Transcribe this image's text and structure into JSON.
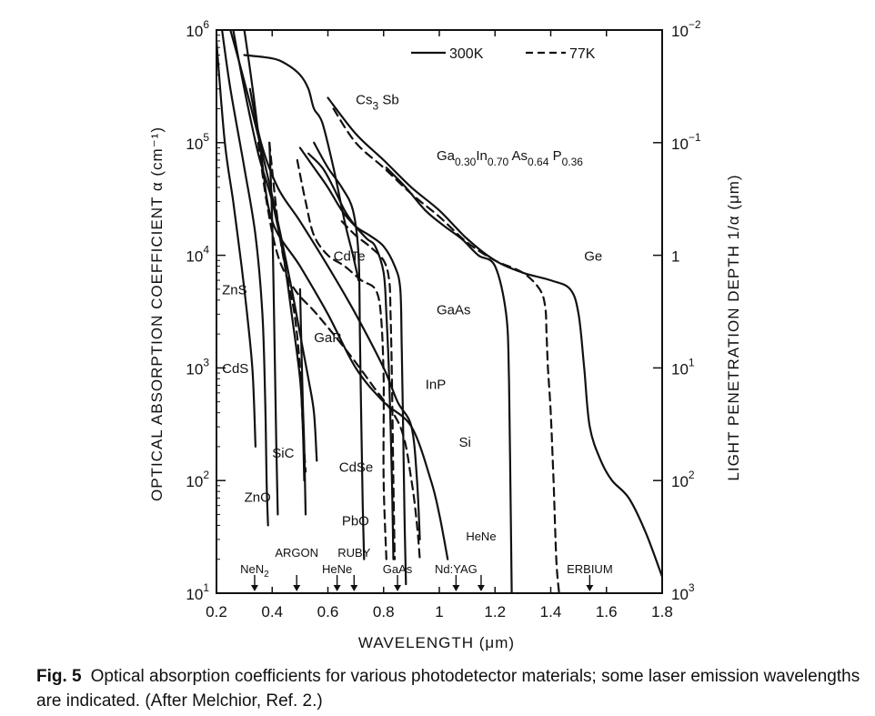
{
  "chart_data": {
    "type": "line",
    "title": "",
    "xlabel": "WAVELENGTH  (μm)",
    "ylabel": "OPTICAL  ABSORPTION  COEFFICIENT  α  (cm⁻¹)",
    "y2label": "LIGHT  PENETRATION  DEPTH  1/α  (μm)",
    "xlim": [
      0.2,
      1.8
    ],
    "ylim": [
      10,
      1000000
    ],
    "yscale": "log",
    "x_ticks": [
      "0.2",
      "0.4",
      "0.6",
      "0.8",
      "1",
      "1.2",
      "1.4",
      "1.6",
      "1.8"
    ],
    "x_tick_values": [
      0.2,
      0.4,
      0.6,
      0.8,
      1.0,
      1.2,
      1.4,
      1.6,
      1.8
    ],
    "y_ticks": [
      {
        "base": "10",
        "exp": "1",
        "value": 10
      },
      {
        "base": "10",
        "exp": "2",
        "value": 100
      },
      {
        "base": "10",
        "exp": "3",
        "value": 1000
      },
      {
        "base": "10",
        "exp": "4",
        "value": 10000
      },
      {
        "base": "10",
        "exp": "5",
        "value": 100000
      },
      {
        "base": "10",
        "exp": "6",
        "value": 1000000
      }
    ],
    "y2_ticks": [
      {
        "base": "10",
        "exp": "3",
        "value": 10
      },
      {
        "base": "10",
        "exp": "2",
        "value": 100
      },
      {
        "base": "10",
        "exp": "1",
        "value": 1000
      },
      {
        "base": "1",
        "exp": "",
        "value": 10000
      },
      {
        "base": "10",
        "exp": "−1",
        "value": 100000
      },
      {
        "base": "10",
        "exp": "−2",
        "value": 1000000
      }
    ],
    "legend": [
      {
        "label": "300K",
        "style": "solid"
      },
      {
        "label": "77K",
        "style": "dashed"
      }
    ],
    "series": [
      {
        "name": "ZnS",
        "temp": "300K",
        "points": [
          [
            0.2,
            800000
          ],
          [
            0.23,
            100000
          ],
          [
            0.26,
            30000
          ],
          [
            0.29,
            8000
          ],
          [
            0.31,
            3000
          ],
          [
            0.33,
            900
          ],
          [
            0.34,
            200
          ]
        ]
      },
      {
        "name": "ZnO",
        "temp": "300K",
        "points": [
          [
            0.22,
            1000000
          ],
          [
            0.25,
            300000
          ],
          [
            0.3,
            60000
          ],
          [
            0.34,
            15000
          ],
          [
            0.365,
            3000
          ],
          [
            0.375,
            500
          ],
          [
            0.38,
            100
          ],
          [
            0.385,
            40
          ]
        ]
      },
      {
        "name": "CdS",
        "temp": "300K",
        "points": [
          [
            0.26,
            1000000
          ],
          [
            0.3,
            300000
          ],
          [
            0.35,
            80000
          ],
          [
            0.4,
            30000
          ],
          [
            0.44,
            10000
          ],
          [
            0.47,
            3000
          ],
          [
            0.5,
            800
          ],
          [
            0.51,
            300
          ],
          [
            0.515,
            100
          ]
        ]
      },
      {
        "name": "SiC",
        "temp": "300K",
        "points": [
          [
            0.39,
            100000
          ],
          [
            0.4,
            20000
          ],
          [
            0.405,
            5000
          ],
          [
            0.41,
            1000
          ],
          [
            0.415,
            200
          ],
          [
            0.42,
            50
          ]
        ]
      },
      {
        "name": "GaP",
        "temp": "300K",
        "points": [
          [
            0.25,
            1000000
          ],
          [
            0.3,
            350000
          ],
          [
            0.36,
            90000
          ],
          [
            0.42,
            20000
          ],
          [
            0.47,
            5000
          ],
          [
            0.5,
            2000
          ],
          [
            0.53,
            800
          ],
          [
            0.55,
            400
          ],
          [
            0.56,
            150
          ]
        ]
      },
      {
        "name": "GaP",
        "temp": "77K",
        "points": [
          [
            0.39,
            100000
          ],
          [
            0.42,
            20000
          ],
          [
            0.45,
            7000
          ],
          [
            0.48,
            3000
          ],
          [
            0.5,
            1000
          ],
          [
            0.51,
            300
          ],
          [
            0.52,
            120
          ]
        ]
      },
      {
        "name": "PbO",
        "temp": "300K",
        "points": [
          [
            0.5,
            5000
          ],
          [
            0.505,
            1500
          ],
          [
            0.51,
            500
          ],
          [
            0.515,
            200
          ],
          [
            0.52,
            50
          ]
        ]
      },
      {
        "name": "Cs3 Sb",
        "temp": "300K",
        "points": [
          [
            0.3,
            600000
          ],
          [
            0.4,
            560000
          ],
          [
            0.45,
            500000
          ],
          [
            0.5,
            400000
          ],
          [
            0.53,
            300000
          ],
          [
            0.55,
            200000
          ],
          [
            0.58,
            150000
          ],
          [
            0.62,
            60000
          ],
          [
            0.66,
            20000
          ],
          [
            0.69,
            10000
          ],
          [
            0.71,
            6000
          ]
        ]
      },
      {
        "name": "CdTe",
        "temp": "300K",
        "points": [
          [
            0.53,
            80000
          ],
          [
            0.58,
            60000
          ],
          [
            0.62,
            40000
          ],
          [
            0.66,
            25000
          ],
          [
            0.7,
            18000
          ],
          [
            0.74,
            14000
          ],
          [
            0.77,
            12000
          ],
          [
            0.8,
            7000
          ],
          [
            0.81,
            3000
          ],
          [
            0.82,
            800
          ],
          [
            0.83,
            100
          ],
          [
            0.835,
            20
          ]
        ]
      },
      {
        "name": "CdTe",
        "temp": "77K",
        "points": [
          [
            0.49,
            70000
          ],
          [
            0.52,
            30000
          ],
          [
            0.55,
            15000
          ],
          [
            0.6,
            10000
          ],
          [
            0.66,
            8000
          ],
          [
            0.72,
            6000
          ],
          [
            0.77,
            5000
          ],
          [
            0.79,
            3000
          ],
          [
            0.8,
            800
          ],
          [
            0.8,
            100
          ],
          [
            0.81,
            20
          ]
        ]
      },
      {
        "name": "CdSe",
        "temp": "300K",
        "points": [
          [
            0.55,
            100000
          ],
          [
            0.6,
            60000
          ],
          [
            0.65,
            40000
          ],
          [
            0.69,
            25000
          ],
          [
            0.71,
            10000
          ],
          [
            0.715,
            2000
          ],
          [
            0.72,
            300
          ],
          [
            0.725,
            60
          ],
          [
            0.73,
            20
          ]
        ]
      },
      {
        "name": "GaAs",
        "temp": "300K",
        "points": [
          [
            0.5,
            90000
          ],
          [
            0.55,
            60000
          ],
          [
            0.6,
            40000
          ],
          [
            0.65,
            25000
          ],
          [
            0.7,
            18000
          ],
          [
            0.75,
            15000
          ],
          [
            0.8,
            12000
          ],
          [
            0.84,
            8000
          ],
          [
            0.86,
            5000
          ],
          [
            0.865,
            1500
          ],
          [
            0.87,
            300
          ],
          [
            0.875,
            50
          ],
          [
            0.88,
            12
          ]
        ]
      },
      {
        "name": "GaAs",
        "temp": "77K",
        "points": [
          [
            0.65,
            20000
          ],
          [
            0.7,
            15000
          ],
          [
            0.75,
            12000
          ],
          [
            0.8,
            9000
          ],
          [
            0.82,
            6000
          ],
          [
            0.825,
            3000
          ],
          [
            0.83,
            800
          ],
          [
            0.835,
            100
          ],
          [
            0.84,
            20
          ]
        ]
      },
      {
        "name": "InP",
        "temp": "300K",
        "points": [
          [
            0.32,
            300000
          ],
          [
            0.36,
            100000
          ],
          [
            0.42,
            40000
          ],
          [
            0.5,
            20000
          ],
          [
            0.6,
            8000
          ],
          [
            0.7,
            3000
          ],
          [
            0.8,
            1000
          ],
          [
            0.85,
            500
          ],
          [
            0.9,
            300
          ],
          [
            0.92,
            100
          ],
          [
            0.93,
            30
          ]
        ]
      },
      {
        "name": "Si",
        "temp": "300K",
        "points": [
          [
            0.3,
            1000000
          ],
          [
            0.33,
            300000
          ],
          [
            0.36,
            80000
          ],
          [
            0.4,
            20000
          ],
          [
            0.5,
            8000
          ],
          [
            0.6,
            3000
          ],
          [
            0.7,
            1000
          ],
          [
            0.8,
            500
          ],
          [
            0.9,
            300
          ],
          [
            0.97,
            100
          ],
          [
            1.0,
            50
          ],
          [
            1.03,
            20
          ]
        ]
      },
      {
        "name": "Si",
        "temp": "77K",
        "points": [
          [
            0.35,
            100000
          ],
          [
            0.38,
            30000
          ],
          [
            0.42,
            10000
          ],
          [
            0.48,
            5000
          ],
          [
            0.56,
            3000
          ],
          [
            0.66,
            1500
          ],
          [
            0.76,
            700
          ],
          [
            0.86,
            300
          ],
          [
            0.9,
            100
          ],
          [
            0.92,
            40
          ],
          [
            0.93,
            20
          ]
        ]
      },
      {
        "name": "Ga0.30In0.70As0.64P0.36",
        "temp": "300K",
        "points": [
          [
            0.81,
            60000
          ],
          [
            0.88,
            40000
          ],
          [
            0.95,
            25000
          ],
          [
            1.02,
            18000
          ],
          [
            1.08,
            14000
          ],
          [
            1.14,
            10000
          ],
          [
            1.2,
            8000
          ],
          [
            1.24,
            3000
          ],
          [
            1.25,
            800
          ],
          [
            1.255,
            100
          ],
          [
            1.26,
            10
          ]
        ]
      },
      {
        "name": "Ge",
        "temp": "300K",
        "points": [
          [
            0.6,
            250000
          ],
          [
            0.7,
            120000
          ],
          [
            0.8,
            70000
          ],
          [
            0.9,
            40000
          ],
          [
            1.0,
            25000
          ],
          [
            1.1,
            14000
          ],
          [
            1.2,
            9000
          ],
          [
            1.3,
            7000
          ],
          [
            1.4,
            6000
          ],
          [
            1.47,
            5000
          ],
          [
            1.5,
            3000
          ],
          [
            1.52,
            1000
          ],
          [
            1.54,
            300
          ],
          [
            1.58,
            150
          ],
          [
            1.62,
            100
          ],
          [
            1.68,
            70
          ],
          [
            1.74,
            35
          ],
          [
            1.8,
            14
          ]
        ]
      },
      {
        "name": "Ge",
        "temp": "77K",
        "points": [
          [
            0.62,
            200000
          ],
          [
            0.7,
            100000
          ],
          [
            0.8,
            60000
          ],
          [
            0.9,
            35000
          ],
          [
            1.0,
            22000
          ],
          [
            1.1,
            13000
          ],
          [
            1.2,
            9000
          ],
          [
            1.3,
            7000
          ],
          [
            1.36,
            5000
          ],
          [
            1.38,
            3500
          ],
          [
            1.385,
            2000
          ],
          [
            1.39,
            1000
          ],
          [
            1.4,
            400
          ],
          [
            1.41,
            100
          ],
          [
            1.42,
            20
          ],
          [
            1.43,
            10
          ]
        ]
      }
    ],
    "curve_labels": [
      {
        "text": "Cs",
        "sub": "3",
        "tail": " Sb",
        "x": 0.7,
        "y": 220000
      },
      {
        "text": "Ga",
        "sub": "0.30",
        "tail": "In",
        "sub2": "0.70",
        "tail2": " As",
        "sub3": "0.64",
        "tail3": " P",
        "sub4": "0.36",
        "x": 0.99,
        "y": 70000
      },
      {
        "text": "CdTe",
        "x": 0.62,
        "y": 9000
      },
      {
        "text": "GaAs",
        "x": 0.99,
        "y": 3000
      },
      {
        "text": "ZnS",
        "x": 0.22,
        "y": 4500
      },
      {
        "text": "GaP",
        "x": 0.55,
        "y": 1700
      },
      {
        "text": "CdS",
        "x": 0.22,
        "y": 900
      },
      {
        "text": "InP",
        "x": 0.95,
        "y": 650
      },
      {
        "text": "Si",
        "x": 1.07,
        "y": 200
      },
      {
        "text": "Ge",
        "x": 1.52,
        "y": 9000
      },
      {
        "text": "SiC",
        "x": 0.4,
        "y": 160
      },
      {
        "text": "CdSe",
        "x": 0.64,
        "y": 120
      },
      {
        "text": "ZnO",
        "x": 0.3,
        "y": 65
      },
      {
        "text": "PbO",
        "x": 0.65,
        "y": 40
      }
    ],
    "lasers": [
      {
        "name": "NeN",
        "sub": "2",
        "x": 0.337
      },
      {
        "name": "ARGON",
        "x": 0.488
      },
      {
        "name": "HeNe",
        "x": 0.633
      },
      {
        "name": "RUBY",
        "x": 0.694
      },
      {
        "name": "GaAs",
        "x": 0.85
      },
      {
        "name": "Nd:YAG",
        "x": 1.06
      },
      {
        "name": "HeNe",
        "x": 1.15
      },
      {
        "name": "ERBIUM",
        "x": 1.54
      }
    ]
  },
  "caption": {
    "label": "Fig. 5",
    "text": "Optical absorption coefficients for various photodetector materials; some laser emission wavelengths are indicated. (After Melchior, Ref. 2.)"
  }
}
